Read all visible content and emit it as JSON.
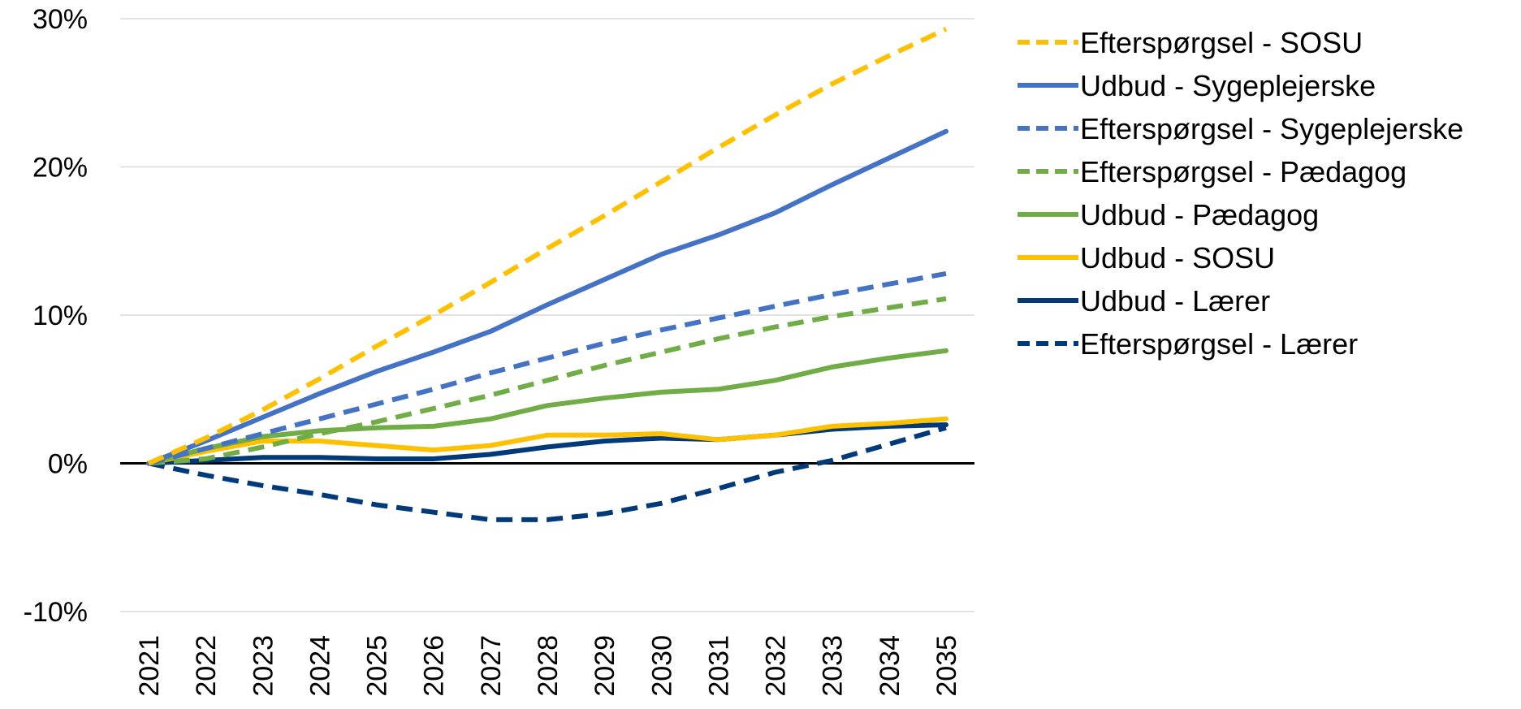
{
  "chart_data": {
    "type": "line",
    "x": [
      "2021",
      "2022",
      "2023",
      "2024",
      "2025",
      "2026",
      "2027",
      "2028",
      "2029",
      "2030",
      "2031",
      "2032",
      "2033",
      "2034",
      "2035"
    ],
    "ylim": [
      -10,
      30
    ],
    "yticks": [
      -10,
      0,
      10,
      20,
      30
    ],
    "ytick_labels": [
      "-10%",
      "0%",
      "10%",
      "20%",
      "30%"
    ],
    "grid": true,
    "legend_position": "right",
    "series": [
      {
        "name": "Efterspørgsel - SOSU",
        "color": "#FFC000",
        "dashed": true,
        "values": [
          0,
          1.7,
          3.6,
          5.7,
          7.9,
          10.0,
          12.2,
          14.5,
          16.7,
          19.0,
          21.3,
          23.5,
          25.6,
          27.5,
          29.3
        ]
      },
      {
        "name": "Udbud - Sygeplejerske",
        "color": "#4472C4",
        "dashed": false,
        "values": [
          0,
          1.5,
          3.1,
          4.7,
          6.2,
          7.5,
          8.9,
          10.7,
          12.4,
          14.1,
          15.4,
          16.9,
          18.8,
          20.6,
          22.4
        ]
      },
      {
        "name": "Efterspørgsel - Sygeplejerske",
        "color": "#4472C4",
        "dashed": true,
        "values": [
          0,
          1.0,
          2.0,
          3.0,
          4.0,
          5.0,
          6.1,
          7.1,
          8.1,
          9.0,
          9.8,
          10.6,
          11.4,
          12.1,
          12.8
        ]
      },
      {
        "name": "Efterspørgsel - Pædagog",
        "color": "#70AD47",
        "dashed": true,
        "values": [
          0,
          0.3,
          1.1,
          2.0,
          2.8,
          3.7,
          4.6,
          5.6,
          6.6,
          7.5,
          8.4,
          9.2,
          9.9,
          10.5,
          11.1
        ]
      },
      {
        "name": "Udbud - Pædagog",
        "color": "#70AD47",
        "dashed": false,
        "values": [
          0,
          1.0,
          1.8,
          2.2,
          2.4,
          2.5,
          3.0,
          3.9,
          4.4,
          4.8,
          5.0,
          5.6,
          6.5,
          7.1,
          7.6
        ]
      },
      {
        "name": "Udbud - SOSU",
        "color": "#FFC000",
        "dashed": false,
        "values": [
          0,
          0.8,
          1.5,
          1.5,
          1.2,
          0.9,
          1.2,
          1.9,
          1.9,
          2.0,
          1.6,
          1.9,
          2.5,
          2.7,
          3.0
        ]
      },
      {
        "name": "Udbud - Lærer",
        "color": "#003A7A",
        "dashed": false,
        "values": [
          0,
          0.2,
          0.4,
          0.4,
          0.3,
          0.3,
          0.6,
          1.1,
          1.5,
          1.7,
          1.6,
          1.9,
          2.3,
          2.5,
          2.6
        ]
      },
      {
        "name": "Efterspørgsel - Lærer",
        "color": "#003A7A",
        "dashed": true,
        "values": [
          0,
          -0.8,
          -1.5,
          -2.1,
          -2.8,
          -3.3,
          -3.8,
          -3.8,
          -3.4,
          -2.7,
          -1.7,
          -0.6,
          0.2,
          1.3,
          2.4
        ]
      }
    ]
  }
}
